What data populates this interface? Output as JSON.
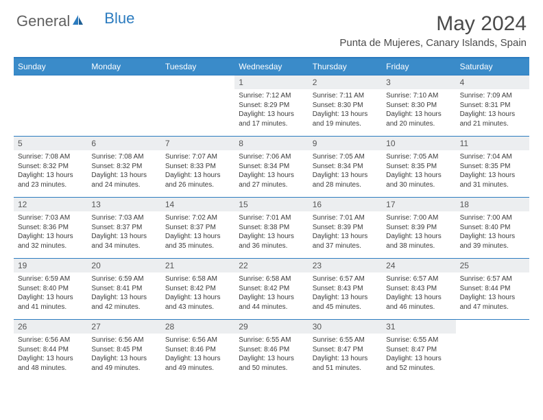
{
  "logo": {
    "part1": "General",
    "part2": "Blue"
  },
  "title": "May 2024",
  "location": "Punta de Mujeres, Canary Islands, Spain",
  "colors": {
    "header_bar": "#3a8bc9",
    "accent_line": "#2b7bbf",
    "daynum_bg": "#eceef0",
    "text": "#3a3a3a",
    "title_text": "#4a4a4a"
  },
  "typography": {
    "title_fontsize": 30,
    "location_fontsize": 15,
    "dayhead_fontsize": 12,
    "daynum_fontsize": 12,
    "body_fontsize": 10
  },
  "day_names": [
    "Sunday",
    "Monday",
    "Tuesday",
    "Wednesday",
    "Thursday",
    "Friday",
    "Saturday"
  ],
  "weeks": [
    [
      {
        "blank": true
      },
      {
        "blank": true
      },
      {
        "blank": true
      },
      {
        "num": "1",
        "sunrise": "Sunrise: 7:12 AM",
        "sunset": "Sunset: 8:29 PM",
        "day1": "Daylight: 13 hours",
        "day2": "and 17 minutes."
      },
      {
        "num": "2",
        "sunrise": "Sunrise: 7:11 AM",
        "sunset": "Sunset: 8:30 PM",
        "day1": "Daylight: 13 hours",
        "day2": "and 19 minutes."
      },
      {
        "num": "3",
        "sunrise": "Sunrise: 7:10 AM",
        "sunset": "Sunset: 8:30 PM",
        "day1": "Daylight: 13 hours",
        "day2": "and 20 minutes."
      },
      {
        "num": "4",
        "sunrise": "Sunrise: 7:09 AM",
        "sunset": "Sunset: 8:31 PM",
        "day1": "Daylight: 13 hours",
        "day2": "and 21 minutes."
      }
    ],
    [
      {
        "num": "5",
        "sunrise": "Sunrise: 7:08 AM",
        "sunset": "Sunset: 8:32 PM",
        "day1": "Daylight: 13 hours",
        "day2": "and 23 minutes."
      },
      {
        "num": "6",
        "sunrise": "Sunrise: 7:08 AM",
        "sunset": "Sunset: 8:32 PM",
        "day1": "Daylight: 13 hours",
        "day2": "and 24 minutes."
      },
      {
        "num": "7",
        "sunrise": "Sunrise: 7:07 AM",
        "sunset": "Sunset: 8:33 PM",
        "day1": "Daylight: 13 hours",
        "day2": "and 26 minutes."
      },
      {
        "num": "8",
        "sunrise": "Sunrise: 7:06 AM",
        "sunset": "Sunset: 8:34 PM",
        "day1": "Daylight: 13 hours",
        "day2": "and 27 minutes."
      },
      {
        "num": "9",
        "sunrise": "Sunrise: 7:05 AM",
        "sunset": "Sunset: 8:34 PM",
        "day1": "Daylight: 13 hours",
        "day2": "and 28 minutes."
      },
      {
        "num": "10",
        "sunrise": "Sunrise: 7:05 AM",
        "sunset": "Sunset: 8:35 PM",
        "day1": "Daylight: 13 hours",
        "day2": "and 30 minutes."
      },
      {
        "num": "11",
        "sunrise": "Sunrise: 7:04 AM",
        "sunset": "Sunset: 8:35 PM",
        "day1": "Daylight: 13 hours",
        "day2": "and 31 minutes."
      }
    ],
    [
      {
        "num": "12",
        "sunrise": "Sunrise: 7:03 AM",
        "sunset": "Sunset: 8:36 PM",
        "day1": "Daylight: 13 hours",
        "day2": "and 32 minutes."
      },
      {
        "num": "13",
        "sunrise": "Sunrise: 7:03 AM",
        "sunset": "Sunset: 8:37 PM",
        "day1": "Daylight: 13 hours",
        "day2": "and 34 minutes."
      },
      {
        "num": "14",
        "sunrise": "Sunrise: 7:02 AM",
        "sunset": "Sunset: 8:37 PM",
        "day1": "Daylight: 13 hours",
        "day2": "and 35 minutes."
      },
      {
        "num": "15",
        "sunrise": "Sunrise: 7:01 AM",
        "sunset": "Sunset: 8:38 PM",
        "day1": "Daylight: 13 hours",
        "day2": "and 36 minutes."
      },
      {
        "num": "16",
        "sunrise": "Sunrise: 7:01 AM",
        "sunset": "Sunset: 8:39 PM",
        "day1": "Daylight: 13 hours",
        "day2": "and 37 minutes."
      },
      {
        "num": "17",
        "sunrise": "Sunrise: 7:00 AM",
        "sunset": "Sunset: 8:39 PM",
        "day1": "Daylight: 13 hours",
        "day2": "and 38 minutes."
      },
      {
        "num": "18",
        "sunrise": "Sunrise: 7:00 AM",
        "sunset": "Sunset: 8:40 PM",
        "day1": "Daylight: 13 hours",
        "day2": "and 39 minutes."
      }
    ],
    [
      {
        "num": "19",
        "sunrise": "Sunrise: 6:59 AM",
        "sunset": "Sunset: 8:40 PM",
        "day1": "Daylight: 13 hours",
        "day2": "and 41 minutes."
      },
      {
        "num": "20",
        "sunrise": "Sunrise: 6:59 AM",
        "sunset": "Sunset: 8:41 PM",
        "day1": "Daylight: 13 hours",
        "day2": "and 42 minutes."
      },
      {
        "num": "21",
        "sunrise": "Sunrise: 6:58 AM",
        "sunset": "Sunset: 8:42 PM",
        "day1": "Daylight: 13 hours",
        "day2": "and 43 minutes."
      },
      {
        "num": "22",
        "sunrise": "Sunrise: 6:58 AM",
        "sunset": "Sunset: 8:42 PM",
        "day1": "Daylight: 13 hours",
        "day2": "and 44 minutes."
      },
      {
        "num": "23",
        "sunrise": "Sunrise: 6:57 AM",
        "sunset": "Sunset: 8:43 PM",
        "day1": "Daylight: 13 hours",
        "day2": "and 45 minutes."
      },
      {
        "num": "24",
        "sunrise": "Sunrise: 6:57 AM",
        "sunset": "Sunset: 8:43 PM",
        "day1": "Daylight: 13 hours",
        "day2": "and 46 minutes."
      },
      {
        "num": "25",
        "sunrise": "Sunrise: 6:57 AM",
        "sunset": "Sunset: 8:44 PM",
        "day1": "Daylight: 13 hours",
        "day2": "and 47 minutes."
      }
    ],
    [
      {
        "num": "26",
        "sunrise": "Sunrise: 6:56 AM",
        "sunset": "Sunset: 8:44 PM",
        "day1": "Daylight: 13 hours",
        "day2": "and 48 minutes."
      },
      {
        "num": "27",
        "sunrise": "Sunrise: 6:56 AM",
        "sunset": "Sunset: 8:45 PM",
        "day1": "Daylight: 13 hours",
        "day2": "and 49 minutes."
      },
      {
        "num": "28",
        "sunrise": "Sunrise: 6:56 AM",
        "sunset": "Sunset: 8:46 PM",
        "day1": "Daylight: 13 hours",
        "day2": "and 49 minutes."
      },
      {
        "num": "29",
        "sunrise": "Sunrise: 6:55 AM",
        "sunset": "Sunset: 8:46 PM",
        "day1": "Daylight: 13 hours",
        "day2": "and 50 minutes."
      },
      {
        "num": "30",
        "sunrise": "Sunrise: 6:55 AM",
        "sunset": "Sunset: 8:47 PM",
        "day1": "Daylight: 13 hours",
        "day2": "and 51 minutes."
      },
      {
        "num": "31",
        "sunrise": "Sunrise: 6:55 AM",
        "sunset": "Sunset: 8:47 PM",
        "day1": "Daylight: 13 hours",
        "day2": "and 52 minutes."
      },
      {
        "blank": true
      }
    ]
  ]
}
